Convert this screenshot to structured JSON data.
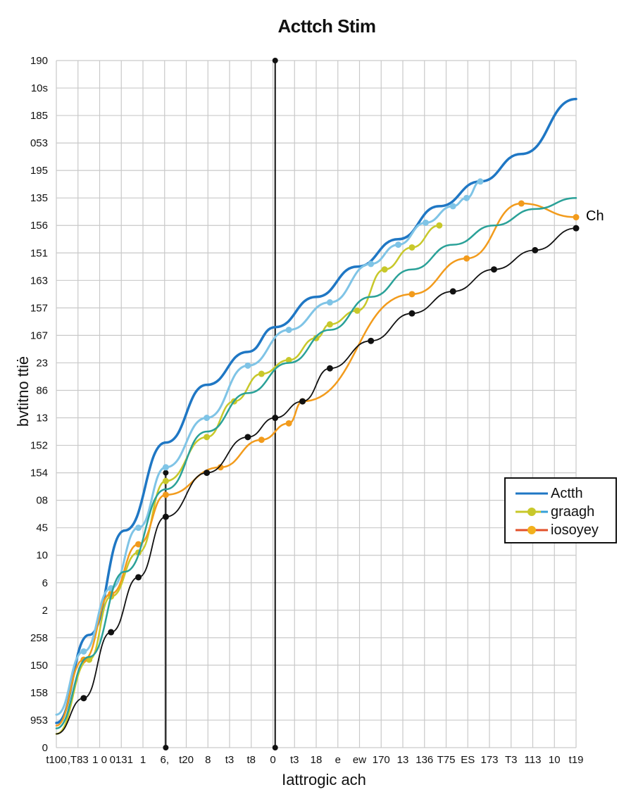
{
  "chart_data": {
    "type": "line",
    "title": "Acttch Stim",
    "xlabel": "Iattrogic ach",
    "ylabel": "bvtitno ttiė",
    "y_tick_labels": [
      "190",
      "10s",
      "185",
      "053",
      "195",
      "135",
      "156",
      "151",
      "163",
      "157",
      "167",
      "23",
      "86",
      "13",
      "152",
      "154",
      "08",
      "45",
      "10",
      "6",
      "2",
      "258",
      "150",
      "158",
      "953",
      "0"
    ],
    "x_tick_labels": [
      "t100",
      ",T83",
      "1 0",
      "0131",
      "1",
      "6,",
      "t20",
      "8",
      "t3",
      "t8",
      "0",
      "t3",
      "18",
      "e",
      "ew",
      "170",
      "13",
      "136",
      "T75",
      "ES",
      "173",
      "T3",
      "113",
      "10",
      "t19"
    ],
    "ylim": [
      0,
      25
    ],
    "xlim": [
      0,
      19
    ],
    "grid": true,
    "legend_placement": "right",
    "annotation": "Ch",
    "vertical_markers": [
      {
        "x": 4.0,
        "y_from": 0,
        "y_to": 10
      },
      {
        "x": 8.0,
        "y_from": 0,
        "y_to": 25
      }
    ],
    "series": [
      {
        "name": "Actth",
        "color": "#1f77c4",
        "width": 3.5,
        "markers": false,
        "x": [
          0,
          1.2,
          2.5,
          4.0,
          5.5,
          7.0,
          8.0,
          9.5,
          11.0,
          12.5,
          14.0,
          15.5,
          17.0,
          19.0
        ],
        "y": [
          0.9,
          4.1,
          7.9,
          11.1,
          13.2,
          14.4,
          15.3,
          16.4,
          17.5,
          18.5,
          19.7,
          20.6,
          21.6,
          23.6
        ]
      },
      {
        "name": "graagh",
        "color": "#c8c82a",
        "width": 2.5,
        "markers": true,
        "x": [
          0,
          1.2,
          2.0,
          3.0,
          4.0,
          5.5,
          6.5,
          7.5,
          8.5,
          9.5,
          10.0,
          11.0,
          12.0,
          13.0,
          14.0
        ],
        "y": [
          0.5,
          3.2,
          5.5,
          7.1,
          9.7,
          11.3,
          12.6,
          13.6,
          14.1,
          14.9,
          15.4,
          15.9,
          17.4,
          18.2,
          19.0
        ]
      },
      {
        "name": "iosoyey",
        "color": "#f29b1c",
        "width": 2.5,
        "markers": true,
        "x": [
          0,
          1.0,
          2.0,
          3.0,
          4.0,
          6.0,
          7.5,
          8.5,
          9.0,
          13.0,
          15.0,
          17.0,
          19.0
        ],
        "y": [
          0.8,
          3.2,
          5.6,
          7.4,
          9.2,
          10.2,
          11.2,
          11.8,
          12.6,
          16.5,
          17.8,
          19.8,
          19.3
        ]
      },
      {
        "name": "",
        "color": "#7fc4e6",
        "width": 3,
        "markers": true,
        "x": [
          0,
          1.0,
          2.0,
          3.0,
          4.0,
          5.5,
          7.0,
          8.5,
          10.0,
          11.5,
          12.5,
          13.5,
          14.5,
          15.0,
          15.5
        ],
        "y": [
          1.2,
          3.5,
          5.8,
          8.0,
          10.2,
          12.0,
          13.9,
          15.2,
          16.2,
          17.6,
          18.3,
          19.1,
          19.7,
          20.0,
          20.6
        ]
      },
      {
        "name": "",
        "color": "#2aa198",
        "width": 2.5,
        "markers": false,
        "x": [
          0,
          1.2,
          2.5,
          4.0,
          5.5,
          7.0,
          8.5,
          10.0,
          11.5,
          13.0,
          14.5,
          16.0,
          17.5,
          19.0
        ],
        "y": [
          0.7,
          3.3,
          6.4,
          9.4,
          11.5,
          12.9,
          14.0,
          15.2,
          16.4,
          17.4,
          18.3,
          19.0,
          19.6,
          20.0
        ]
      },
      {
        "name": "",
        "color": "#111111",
        "width": 1.8,
        "markers": true,
        "x": [
          0,
          1.0,
          2.0,
          3.0,
          4.0,
          5.5,
          7.0,
          8.0,
          9.0,
          10.0,
          11.5,
          13.0,
          14.5,
          16.0,
          17.5,
          19.0
        ],
        "y": [
          0.5,
          1.8,
          4.2,
          6.2,
          8.4,
          10.0,
          11.3,
          12.0,
          12.6,
          13.8,
          14.8,
          15.8,
          16.6,
          17.4,
          18.1,
          18.9
        ]
      }
    ]
  }
}
